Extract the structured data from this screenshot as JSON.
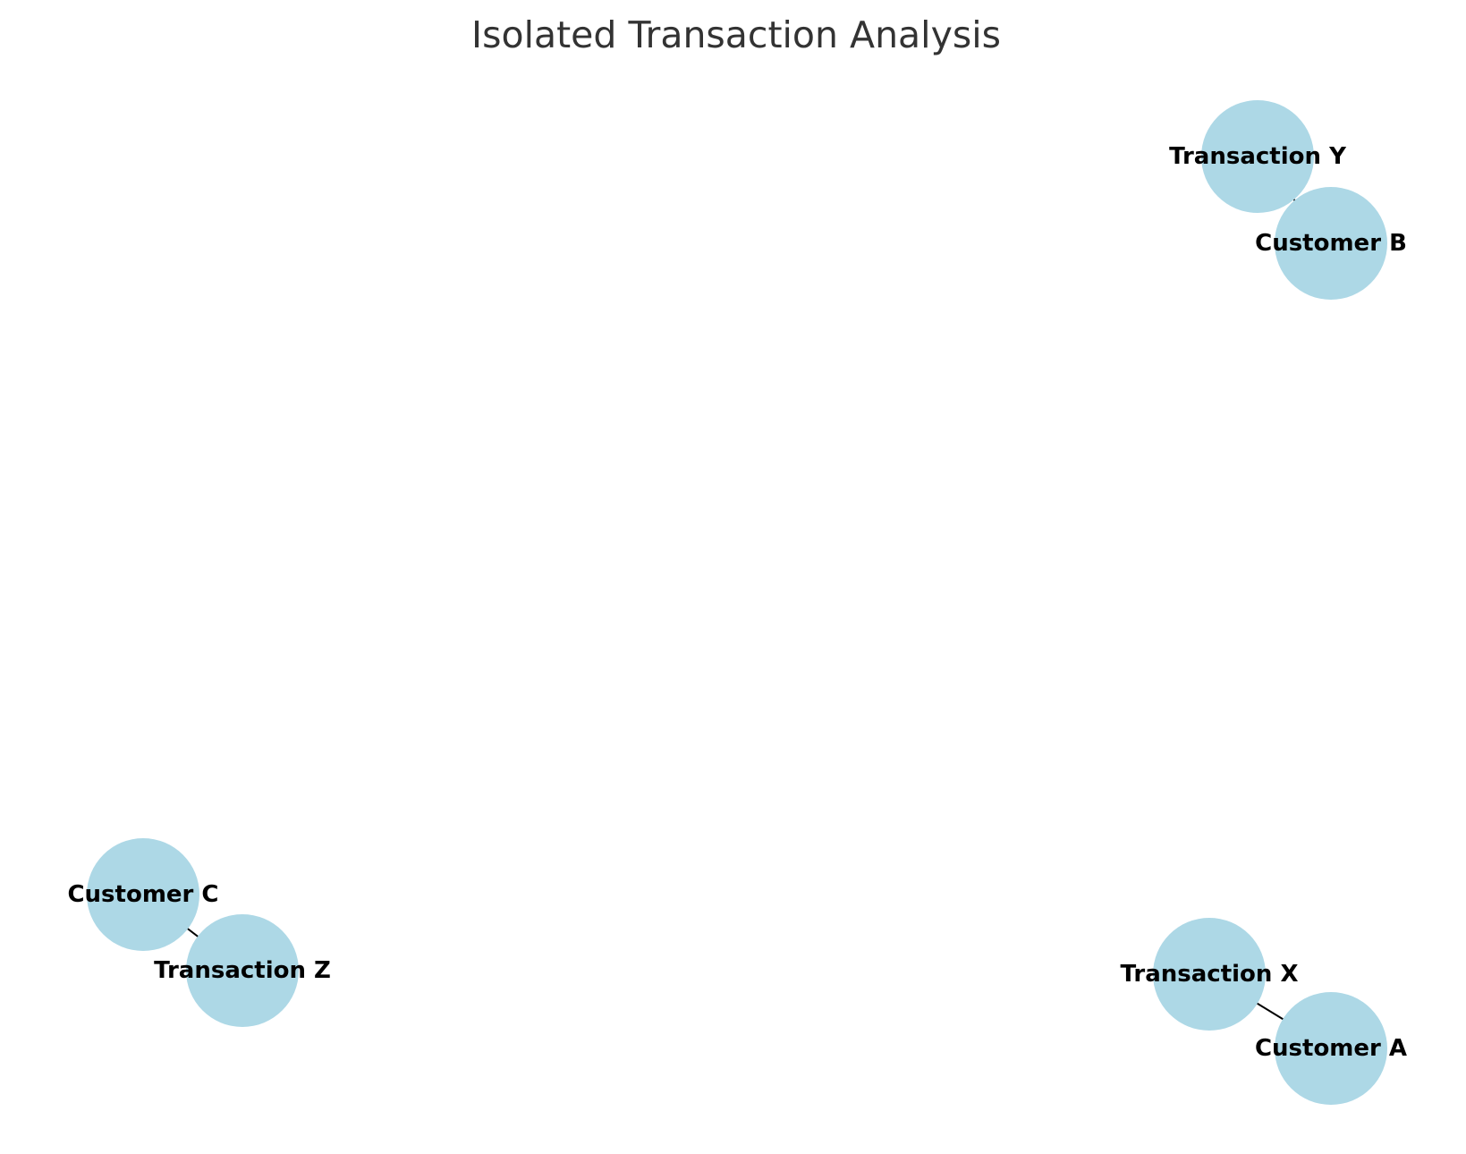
{
  "title": "Isolated Transaction Analysis",
  "colors": {
    "node_fill": "#add8e6",
    "edge": "#000000",
    "label": "#000000",
    "title": "#333333",
    "background": "#ffffff"
  },
  "nodes": [
    {
      "id": "tx_y",
      "label": "Transaction Y"
    },
    {
      "id": "cust_b",
      "label": "Customer B"
    },
    {
      "id": "cust_c",
      "label": "Customer C"
    },
    {
      "id": "tx_z",
      "label": "Transaction Z"
    },
    {
      "id": "tx_x",
      "label": "Transaction X"
    },
    {
      "id": "cust_a",
      "label": "Customer A"
    }
  ],
  "edges": [
    {
      "source": "cust_b",
      "target": "tx_y"
    },
    {
      "source": "cust_c",
      "target": "tx_z"
    },
    {
      "source": "cust_a",
      "target": "tx_x"
    }
  ]
}
